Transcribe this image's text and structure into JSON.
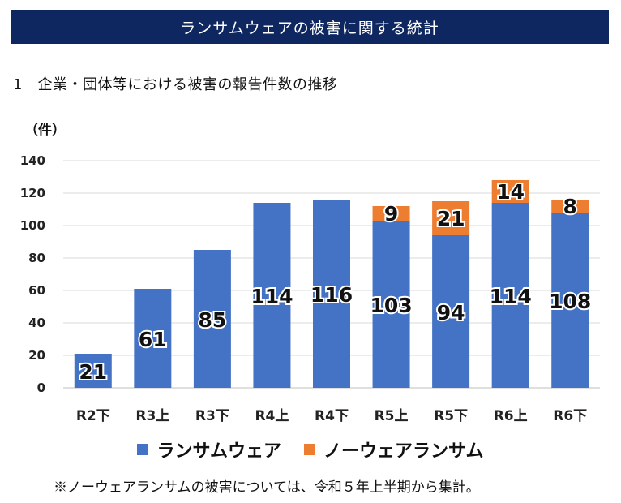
{
  "header": {
    "title": "ランサムウェアの被害に関する統計"
  },
  "section": {
    "title": "1　企業・団体等における被害の報告件数の推移"
  },
  "chart_data": {
    "type": "bar",
    "stacked": true,
    "unit_label": "（件）",
    "categories": [
      "R2下",
      "R3上",
      "R3下",
      "R4上",
      "R4下",
      "R5上",
      "R5下",
      "R6上",
      "R6下"
    ],
    "series": [
      {
        "name": "ランサムウェア",
        "color": "#4472c4",
        "values": [
          21,
          61,
          85,
          114,
          116,
          103,
          94,
          114,
          108
        ]
      },
      {
        "name": "ノーウェアランサム",
        "color": "#ed7d31",
        "values": [
          null,
          null,
          null,
          null,
          null,
          9,
          21,
          14,
          8
        ]
      }
    ],
    "ylim": [
      0,
      140
    ],
    "yticks": [
      0,
      20,
      40,
      60,
      80,
      100,
      120,
      140
    ],
    "grid": true,
    "legend_position": "bottom"
  },
  "footnote": "※ノーウェアランサムの被害については、令和５年上半期から集計。"
}
